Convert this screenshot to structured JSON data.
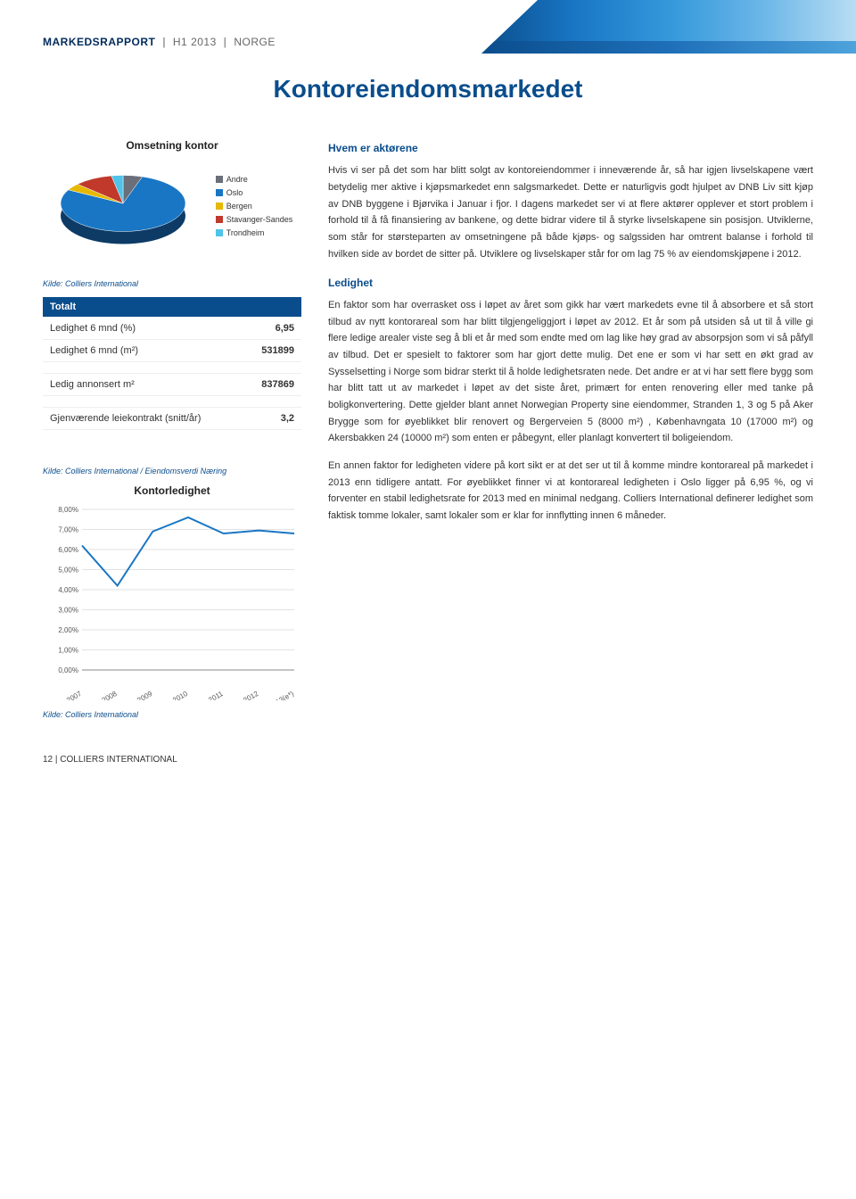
{
  "header": {
    "report": "MARKEDSRAPPORT",
    "period": "H1 2013",
    "country": "NORGE"
  },
  "title": "Kontoreiendomsmarkedet",
  "pie_chart": {
    "title": "Omsetning kontor",
    "type": "pie",
    "slices": [
      {
        "label": "Andre",
        "value": 5,
        "color": "#6a6f7a"
      },
      {
        "label": "Oslo",
        "value": 78,
        "color": "#1976c4"
      },
      {
        "label": "Bergen",
        "value": 4,
        "color": "#e6b800"
      },
      {
        "label": "Stavanger-Sandes",
        "value": 10,
        "color": "#c0392b"
      },
      {
        "label": "Trondheim",
        "value": 3,
        "color": "#4fc3e8"
      }
    ],
    "tilt_ratio": 0.45,
    "background_color": "#ffffff"
  },
  "section1": {
    "heading": "Hvem er aktørene",
    "body": "Hvis vi ser på det som har blitt solgt av kontoreiendommer i inneværende år, så har igjen livselskapene vært betydelig mer aktive i kjøpsmarkedet enn salgsmarkedet. Dette er naturligvis godt hjulpet av DNB Liv sitt kjøp av DNB byggene i Bjørvika i Januar i fjor. I dagens markedet ser vi at flere aktører opplever et stort problem i forhold til å få finansiering av bankene, og dette bidrar videre til å styrke livselskapene sin posisjon. Utviklerne, som står for størsteparten av omsetningene på både kjøps- og salgssiden har omtrent balanse i forhold til hvilken side av bordet de sitter på. Utviklere og livselskaper står for om lag 75 % av eiendomskjøpene i 2012."
  },
  "table": {
    "source": "Kilde: Colliers International",
    "header": "Totalt",
    "rows": [
      {
        "label": "Ledighet 6 mnd (%)",
        "value": "6,95"
      },
      {
        "label": "Ledighet 6 mnd (m²)",
        "value": "531899"
      },
      {
        "label": "Ledig annonsert m²",
        "value": "837869"
      },
      {
        "label": "Gjenværende leiekontrakt (snitt/år)",
        "value": "3,2"
      }
    ]
  },
  "section2": {
    "heading": "Ledighet",
    "body1": "En faktor som har overrasket oss i løpet av året som gikk har vært markedets evne til å absorbere et så stort tilbud av nytt kontorareal som har blitt tilgjengeliggjort i løpet av 2012. Et år som på utsiden så ut til å ville gi flere ledige arealer viste seg å bli et år med som endte med om lag like høy grad av absorpsjon som vi så påfyll av tilbud. Det er spesielt to faktorer som har gjort dette mulig. Det ene er som vi har sett en økt grad av Sysselsetting i Norge som bidrar sterkt til å holde ledighetsraten nede. Det andre er at vi har sett flere bygg som har blitt tatt ut av markedet i løpet av det siste året, primært for enten renovering eller med tanke på boligkonvertering. Dette gjelder blant annet Norwegian Property sine eiendommer, Stranden 1, 3 og 5 på Aker Brygge som for øyeblikket blir renovert og Bergerveien 5 (8000 m²) , Københavngata 10 (17000 m²) og Akersbakken 24 (10000 m²) som enten er påbegynt, eller planlagt konvertert til boligeiendom.",
    "body2": "En annen faktor for ledigheten videre på kort sikt er at det ser ut til å komme mindre kontorareal på markedet i 2013 enn tidligere antatt. For øyeblikket finner vi at kontorareal ledigheten i Oslo ligger på 6,95 %, og vi forventer en stabil ledighetsrate for 2013 med en minimal nedgang. Colliers International definerer ledighet som faktisk tomme lokaler, samt lokaler som er klar for innflytting innen 6 måneder."
  },
  "line_chart": {
    "title": "Kontorledighet",
    "source": "Kilde: Colliers International / Eiendomsverdi Næring",
    "type": "line",
    "x_labels": [
      "2007",
      "2008",
      "2009",
      "2010",
      "2011",
      "2012",
      "2013(e*)"
    ],
    "y_labels": [
      "0,00%",
      "1,00%",
      "2,00%",
      "3,00%",
      "4,00%",
      "5,00%",
      "6,00%",
      "7,00%",
      "8,00%"
    ],
    "ylim": [
      0,
      8
    ],
    "values": [
      6.2,
      4.2,
      6.9,
      7.6,
      6.8,
      6.95,
      6.8
    ],
    "line_color": "#1976c4",
    "line_width": 2,
    "grid_color": "#d9d9d9",
    "axis_color": "#888888",
    "label_fontsize": 8,
    "background_color": "#ffffff"
  },
  "footer_source": "Kilde: Colliers International",
  "footer_page": "12  |  COLLIERS INTERNATIONAL"
}
